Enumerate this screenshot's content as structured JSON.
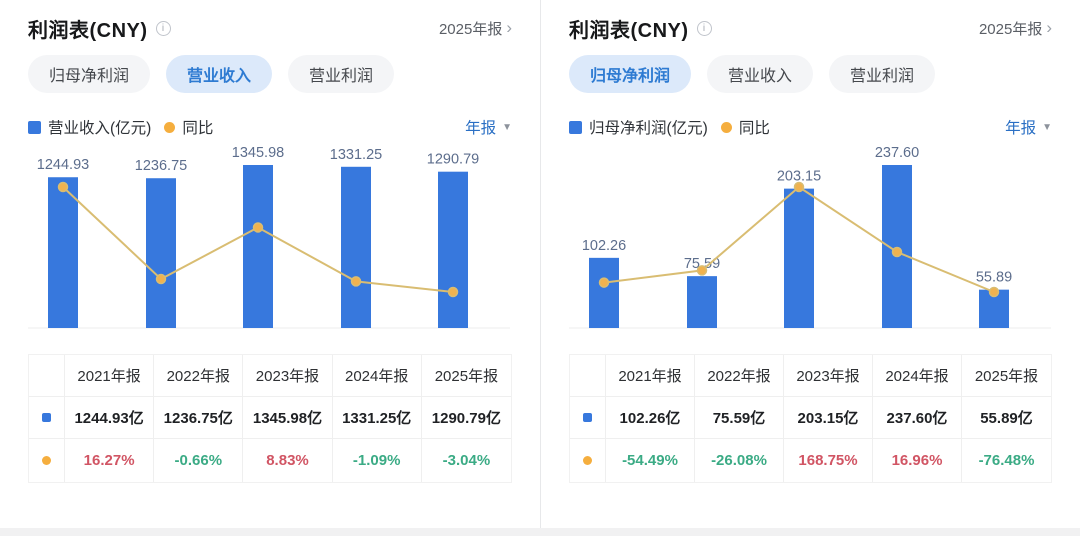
{
  "colors": {
    "bar_blue": "#3778dd",
    "line_tan": "#d9bd72",
    "dot_orange": "#f0b24f",
    "legend_dot": "#f5ae3e",
    "up_red": "#d15564",
    "down_green": "#3bab85",
    "active_tab_text": "#2e7bd2",
    "active_tab_bg": "#dce9fa",
    "bar_label": "#5c6d8c",
    "axis_line": "#ececec"
  },
  "icons": {
    "info": "i",
    "chevron_right": "›",
    "caret_down": "▼"
  },
  "panels": [
    {
      "title": "利润表(CNY)",
      "period_link": "2025年报",
      "tabs": [
        {
          "label": "归母净利润",
          "active": false
        },
        {
          "label": "营业收入",
          "active": true
        },
        {
          "label": "营业利润",
          "active": false
        }
      ],
      "legend": {
        "series_label": "营业收入(亿元)",
        "ratio_label": "同比"
      },
      "freq_label": "年报",
      "chart_data": {
        "type": "bar",
        "categories": [
          "2021年报",
          "2022年报",
          "2023年报",
          "2024年报",
          "2025年报"
        ],
        "series": [
          {
            "name": "营业收入(亿元)",
            "type": "bar",
            "unit": "亿元",
            "values": [
              1244.93,
              1236.75,
              1345.98,
              1331.25,
              1290.79
            ]
          },
          {
            "name": "同比",
            "type": "line",
            "unit": "%",
            "values": [
              16.27,
              -0.66,
              8.83,
              -1.09,
              -3.04
            ]
          }
        ],
        "bar_value_labels": [
          "1244.93",
          "1236.75",
          "1345.98",
          "1331.25",
          "1290.79"
        ],
        "ylim": [
          0,
          1345.98
        ],
        "grid": false,
        "legend_position": "top-left"
      },
      "table": {
        "headers": [
          "2021年报",
          "2022年报",
          "2023年报",
          "2024年报",
          "2025年报"
        ],
        "value_row": [
          "1244.93亿",
          "1236.75亿",
          "1345.98亿",
          "1331.25亿",
          "1290.79亿"
        ],
        "pct_row": [
          "16.27%",
          "-0.66%",
          "8.83%",
          "-1.09%",
          "-3.04%"
        ]
      }
    },
    {
      "title": "利润表(CNY)",
      "period_link": "2025年报",
      "tabs": [
        {
          "label": "归母净利润",
          "active": true
        },
        {
          "label": "营业收入",
          "active": false
        },
        {
          "label": "营业利润",
          "active": false
        }
      ],
      "legend": {
        "series_label": "归母净利润(亿元)",
        "ratio_label": "同比"
      },
      "freq_label": "年报",
      "chart_data": {
        "type": "bar",
        "categories": [
          "2021年报",
          "2022年报",
          "2023年报",
          "2024年报",
          "2025年报"
        ],
        "series": [
          {
            "name": "归母净利润(亿元)",
            "type": "bar",
            "unit": "亿元",
            "values": [
              102.26,
              75.59,
              203.15,
              237.6,
              55.89
            ]
          },
          {
            "name": "同比",
            "type": "line",
            "unit": "%",
            "values": [
              -54.49,
              -26.08,
              168.75,
              16.96,
              -76.48
            ]
          }
        ],
        "bar_value_labels": [
          "102.26",
          "75.59",
          "203.15",
          "237.60",
          "55.89"
        ],
        "ylim": [
          0,
          237.6
        ],
        "grid": false,
        "legend_position": "top-left"
      },
      "table": {
        "headers": [
          "2021年报",
          "2022年报",
          "2023年报",
          "2024年报",
          "2025年报"
        ],
        "value_row": [
          "102.26亿",
          "75.59亿",
          "203.15亿",
          "237.60亿",
          "55.89亿"
        ],
        "pct_row": [
          "-54.49%",
          "-26.08%",
          "168.75%",
          "16.96%",
          "-76.48%"
        ]
      }
    }
  ]
}
